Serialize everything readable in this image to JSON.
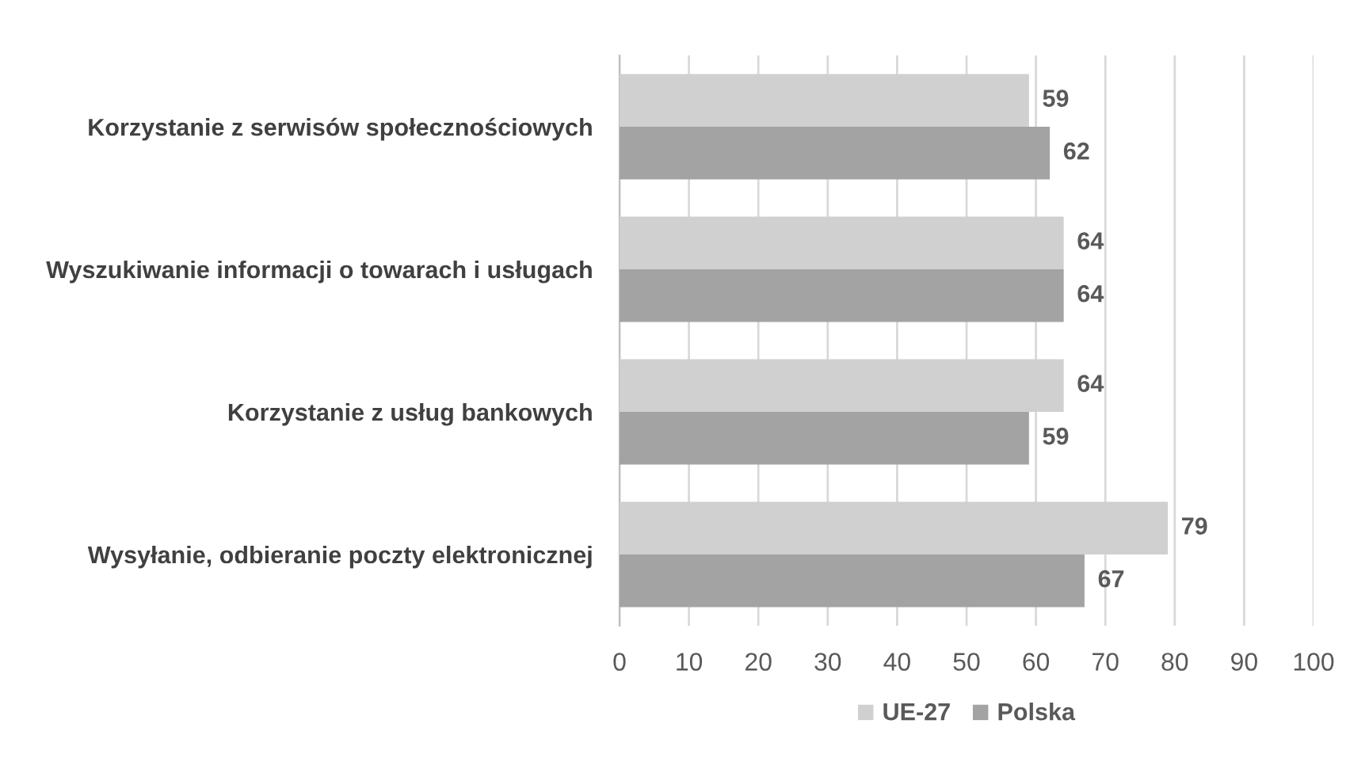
{
  "chart_data": {
    "type": "bar",
    "orientation": "horizontal",
    "categories": [
      "Korzystanie z serwisów społecznościowych",
      "Wyszukiwanie informacji o towarach i usługach",
      "Korzystanie z usług bankowych",
      "Wysyłanie, odbieranie poczty elektronicznej"
    ],
    "series": [
      {
        "name": "UE-27",
        "color": "#d0d0d0",
        "values": [
          59,
          64,
          64,
          79
        ]
      },
      {
        "name": "Polska",
        "color": "#a3a3a3",
        "values": [
          62,
          64,
          59,
          67
        ]
      }
    ],
    "xlim": [
      0,
      100
    ],
    "xticks": [
      0,
      10,
      20,
      30,
      40,
      50,
      60,
      70,
      80,
      90,
      100
    ],
    "grid": "x",
    "legend": "bottom",
    "data_labels": true
  }
}
